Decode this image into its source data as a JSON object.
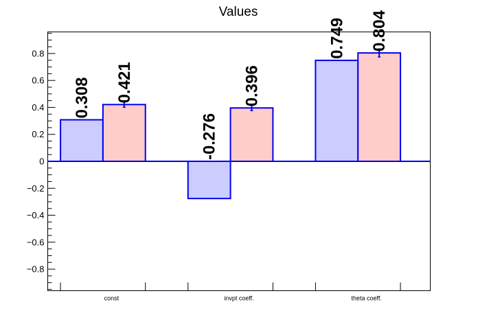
{
  "chart_data": {
    "type": "bar",
    "title": "Values",
    "xlabel": "",
    "ylabel": "",
    "categories": [
      "const",
      "invpt coeff.",
      "theta coeff."
    ],
    "series": [
      {
        "values": [
          0.308,
          -0.276,
          0.749
        ],
        "labels": [
          "0.308",
          "-0.276",
          "0.749"
        ],
        "errors": [
          0,
          0,
          0
        ]
      },
      {
        "values": [
          0.421,
          0.396,
          0.804
        ],
        "labels": [
          "0.421",
          "0.396",
          "0.804"
        ],
        "errors": [
          0.02,
          0.02,
          0.03
        ]
      }
    ],
    "ylim": [
      -0.96,
      0.96
    ],
    "yticks": [
      -0.8,
      -0.6,
      -0.4,
      -0.2,
      0,
      0.2,
      0.4,
      0.6,
      0.8
    ],
    "ytick_labels": [
      "−0.8",
      "−0.6",
      "−0.4",
      "−0.2",
      "0",
      "0.2",
      "0.4",
      "0.6",
      "0.8"
    ],
    "grid": false,
    "colors": {
      "series_fills": [
        "#ccccff",
        "#ffcccc"
      ],
      "stroke": "#0000ee",
      "error_bar": "#0000ee",
      "zero_line": "#0000ee"
    }
  }
}
